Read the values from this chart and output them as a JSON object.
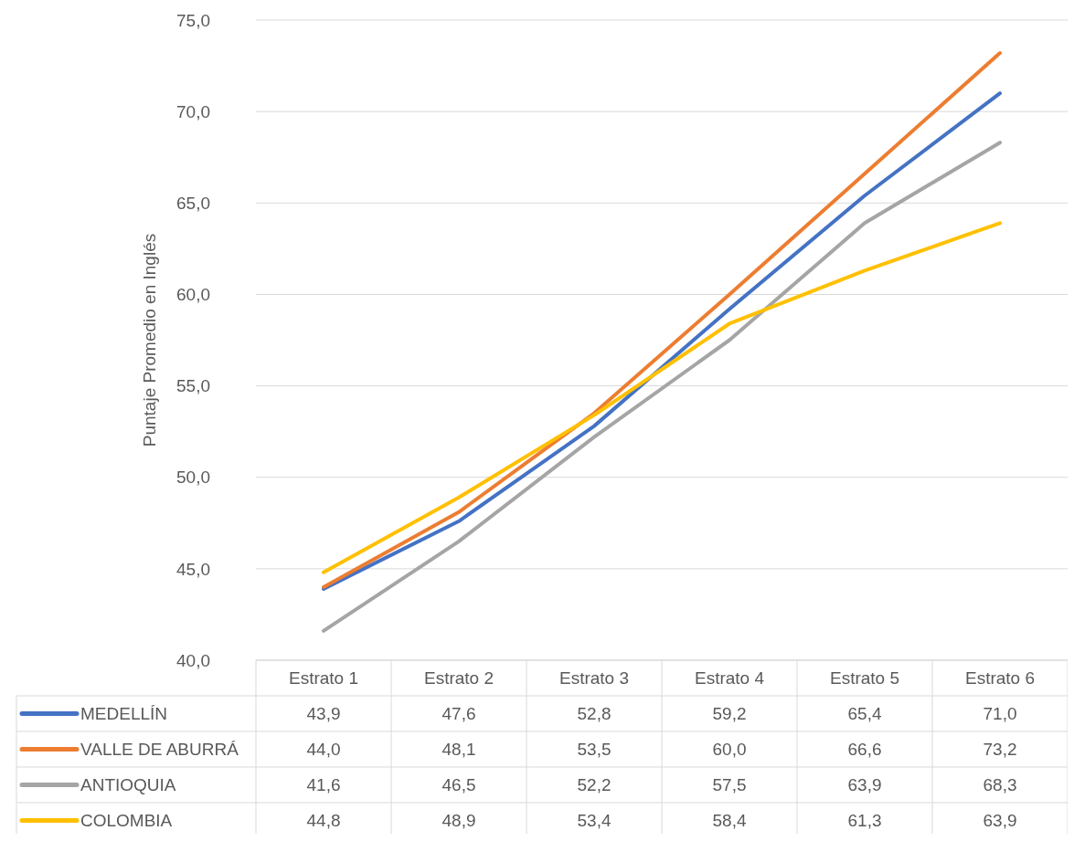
{
  "chart_data": {
    "type": "line",
    "ylabel": "Puntaje Promedio en Inglés",
    "categories": [
      "Estrato 1",
      "Estrato 2",
      "Estrato 3",
      "Estrato 4",
      "Estrato 5",
      "Estrato 6"
    ],
    "series": [
      {
        "name": "MEDELLÍN",
        "color": "#4472c4",
        "values": [
          43.9,
          47.6,
          52.8,
          59.2,
          65.4,
          71.0
        ],
        "value_labels": [
          "43,9",
          "47,6",
          "52,8",
          "59,2",
          "65,4",
          "71,0"
        ]
      },
      {
        "name": "VALLE DE ABURRÁ",
        "color": "#ed7d31",
        "values": [
          44.0,
          48.1,
          53.5,
          60.0,
          66.6,
          73.2
        ],
        "value_labels": [
          "44,0",
          "48,1",
          "53,5",
          "60,0",
          "66,6",
          "73,2"
        ]
      },
      {
        "name": "ANTIOQUIA",
        "color": "#a5a5a5",
        "values": [
          41.6,
          46.5,
          52.2,
          57.5,
          63.9,
          68.3
        ],
        "value_labels": [
          "41,6",
          "46,5",
          "52,2",
          "57,5",
          "63,9",
          "68,3"
        ]
      },
      {
        "name": "COLOMBIA",
        "color": "#ffc000",
        "values": [
          44.8,
          48.9,
          53.4,
          58.4,
          61.3,
          63.9
        ],
        "value_labels": [
          "44,8",
          "48,9",
          "53,4",
          "58,4",
          "61,3",
          "63,9"
        ]
      }
    ],
    "ylim": [
      40,
      75
    ],
    "yticks": [
      {
        "value": 40,
        "label": "40,0"
      },
      {
        "value": 45,
        "label": "45,0"
      },
      {
        "value": 50,
        "label": "50,0"
      },
      {
        "value": 55,
        "label": "55,0"
      },
      {
        "value": 60,
        "label": "60,0"
      },
      {
        "value": 65,
        "label": "65,0"
      },
      {
        "value": 70,
        "label": "70,0"
      },
      {
        "value": 75,
        "label": "75,0"
      }
    ],
    "grid": "y",
    "legend": "bottom",
    "marker": "none",
    "line_style": "solid"
  }
}
